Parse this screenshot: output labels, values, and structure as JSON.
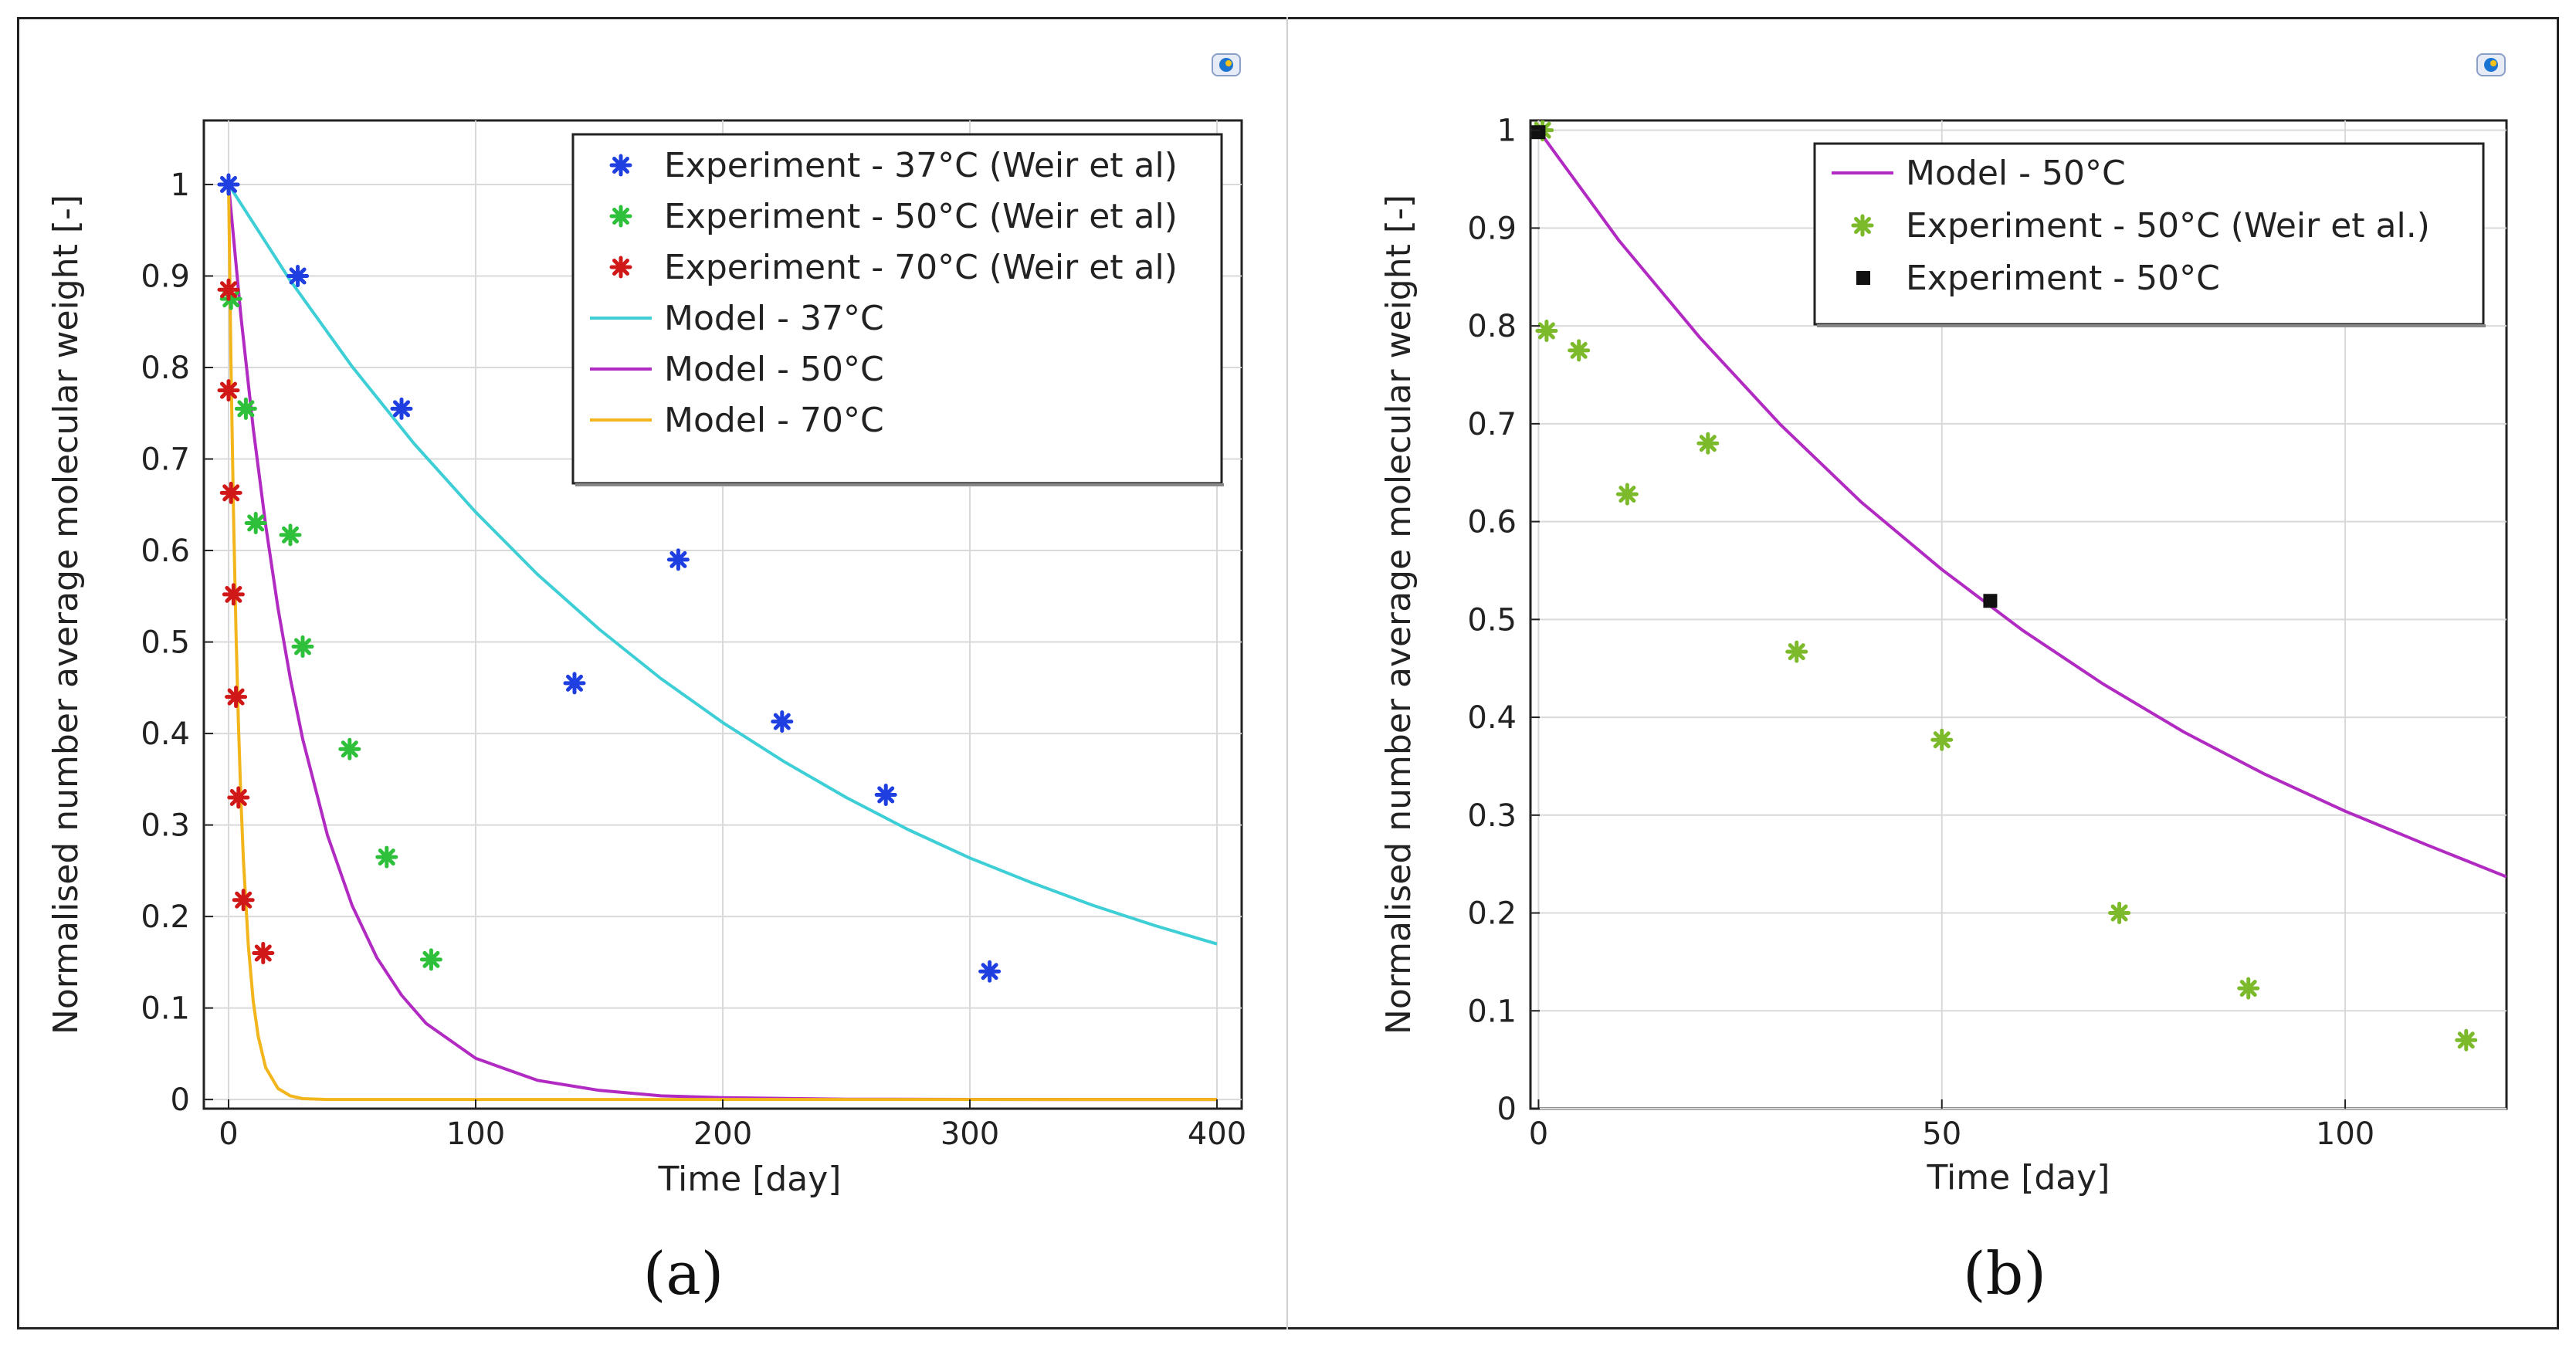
{
  "chart_data": [
    {
      "type": "scatter",
      "caption": "(a)",
      "xlabel": "Time [day]",
      "ylabel": "Normalised number average molecular weight [-]",
      "xlim": [
        -10,
        410
      ],
      "ylim": [
        -0.01,
        1.07
      ],
      "xticks": [
        0,
        100,
        200,
        300,
        400
      ],
      "xtick_labels": [
        "0",
        "100",
        "200",
        "300",
        "400"
      ],
      "yticks": [
        0,
        0.1,
        0.2,
        0.3,
        0.4,
        0.5,
        0.6,
        0.7,
        0.8,
        0.9,
        1
      ],
      "ytick_labels": [
        "0",
        "0.1",
        "0.2",
        "0.3",
        "0.4",
        "0.5",
        "0.6",
        "0.7",
        "0.8",
        "0.9",
        "1"
      ],
      "grid": true,
      "legend_position": "top-right",
      "series": [
        {
          "name": "Experiment - 37°C (Weir et al)",
          "kind": "points",
          "color": "#1f3fe0",
          "x": [
            0,
            28,
            70,
            140,
            182,
            224,
            266,
            308
          ],
          "y": [
            1.0,
            0.9,
            0.755,
            0.455,
            0.59,
            0.413,
            0.333,
            0.14
          ]
        },
        {
          "name": "Experiment - 50°C (Weir et al)",
          "kind": "points",
          "color": "#2ec03a",
          "x": [
            1,
            7,
            11,
            25,
            30,
            49,
            64,
            82
          ],
          "y": [
            0.875,
            0.755,
            0.63,
            0.617,
            0.495,
            0.383,
            0.265,
            0.153
          ]
        },
        {
          "name": "Experiment - 70°C (Weir et al)",
          "kind": "points",
          "color": "#d01818",
          "x": [
            0,
            0,
            1,
            2,
            3,
            4,
            6,
            14
          ],
          "y": [
            0.885,
            0.775,
            0.663,
            0.552,
            0.44,
            0.33,
            0.218,
            0.16
          ]
        },
        {
          "name": "Model - 37°C",
          "kind": "line",
          "color": "#3ecfd6",
          "x": [
            0,
            25,
            50,
            75,
            100,
            125,
            150,
            175,
            200,
            225,
            250,
            275,
            300,
            325,
            350,
            375,
            400
          ],
          "y": [
            1.0,
            0.895,
            0.801,
            0.717,
            0.642,
            0.574,
            0.514,
            0.46,
            0.412,
            0.369,
            0.33,
            0.295,
            0.264,
            0.237,
            0.212,
            0.19,
            0.17
          ]
        },
        {
          "name": "Model - 50°C",
          "kind": "line",
          "color": "#b12ac2",
          "x": [
            0,
            5,
            10,
            15,
            20,
            25,
            30,
            40,
            50,
            60,
            70,
            80,
            100,
            125,
            150,
            175,
            200,
            250,
            300,
            350,
            400
          ],
          "y": [
            1.0,
            0.856,
            0.733,
            0.628,
            0.537,
            0.46,
            0.394,
            0.289,
            0.212,
            0.155,
            0.114,
            0.083,
            0.045,
            0.021,
            0.01,
            0.004,
            0.002,
            0.0004,
            0.0001,
            0.0,
            0.0
          ]
        },
        {
          "name": "Model - 70°C",
          "kind": "line",
          "color": "#f2b51c",
          "x": [
            0,
            1,
            2,
            3,
            4,
            5,
            6,
            8,
            10,
            12,
            15,
            20,
            25,
            30,
            40,
            60,
            100,
            200,
            400
          ],
          "y": [
            1.0,
            0.8,
            0.64,
            0.512,
            0.41,
            0.328,
            0.262,
            0.168,
            0.107,
            0.069,
            0.035,
            0.012,
            0.004,
            0.001,
            0.0,
            0.0,
            0.0,
            0.0,
            0.0
          ]
        }
      ]
    },
    {
      "type": "scatter",
      "caption": "(b)",
      "xlabel": "Time [day]",
      "ylabel": "Normalised number average molecular weight [-]",
      "xlim": [
        -1,
        120
      ],
      "ylim": [
        0,
        1.01
      ],
      "xticks": [
        0,
        50,
        100
      ],
      "xtick_labels": [
        "0",
        "50",
        "100"
      ],
      "yticks": [
        0,
        0.1,
        0.2,
        0.3,
        0.4,
        0.5,
        0.6,
        0.7,
        0.8,
        0.9,
        1
      ],
      "ytick_labels": [
        "0",
        "0.1",
        "0.2",
        "0.3",
        "0.4",
        "0.5",
        "0.6",
        "0.7",
        "0.8",
        "0.9",
        "1"
      ],
      "grid": true,
      "legend_position": "top-right",
      "series": [
        {
          "name": "Model - 50°C",
          "kind": "line",
          "color": "#b12ac2",
          "x": [
            0,
            10,
            20,
            30,
            40,
            50,
            60,
            70,
            80,
            90,
            100,
            110,
            120
          ],
          "y": [
            1.0,
            0.887,
            0.788,
            0.699,
            0.62,
            0.551,
            0.489,
            0.434,
            0.385,
            0.342,
            0.304,
            0.27,
            0.237
          ]
        },
        {
          "name": "Experiment - 50°C (Weir et al.)",
          "kind": "points",
          "color": "#7cba2c",
          "x": [
            0.5,
            1,
            5,
            11,
            21,
            32,
            50,
            72,
            88,
            115
          ],
          "y": [
            1.0,
            0.795,
            0.775,
            0.628,
            0.68,
            0.467,
            0.377,
            0.2,
            0.123,
            0.07
          ]
        },
        {
          "name": "Experiment - 50°C",
          "kind": "squares",
          "color": "#111111",
          "x": [
            0,
            56
          ],
          "y": [
            0.998,
            0.519
          ]
        }
      ]
    }
  ],
  "logo_icon": "comsol-logo-icon"
}
